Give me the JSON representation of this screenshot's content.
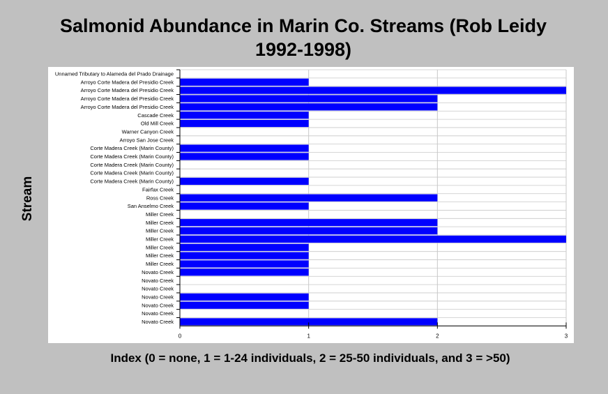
{
  "chart_data": {
    "type": "bar",
    "orientation": "horizontal",
    "title": "Salmonid Abundance in Marin Co. Streams (Rob Leidy 1992-1998)",
    "xlabel": "Index (0 = none, 1 = 1-24 individuals, 2 = 25-50 individuals, and 3 = >50)",
    "ylabel": "Stream",
    "xlim": [
      0,
      3
    ],
    "xticks": [
      "0",
      "1",
      "2",
      "3"
    ],
    "bar_color": "#0000ff",
    "grid": true,
    "legend": "none",
    "categories": [
      "Unnamed Tributary to Alameda del Prado Drainage",
      "Arroyo Corte Madera del Presidio Creek",
      "Arroyo Corte Madera del Presidio Creek",
      "Arroyo Corte Madera del Presidio Creek",
      "Arroyo Corte Madera del Presidio Creek",
      "Cascade Creek",
      "Old Mill Creek",
      "Warner Canyon Creek",
      "Arroyo San Jose Creek",
      "Corte Madera Creek (Marin County)",
      "Corte Madera Creek (Marin County)",
      "Corte Madera Creek (Marin County)",
      "Corte Madera Creek (Marin County)",
      "Corte Madera Creek (Marin County)",
      "Fairfax Creek",
      "Ross Creek",
      "San Anselmo Creek",
      "Miller Creek",
      "Miller Creek",
      "Miller Creek",
      "Miller Creek",
      "Miller Creek",
      "Miller Creek",
      "Miller Creek",
      "Novato Creek",
      "Novato Creek",
      "Novato Creek",
      "Novato Creek",
      "Novato Creek",
      "Novato Creek",
      "Novato Creek"
    ],
    "values": [
      0,
      1,
      3,
      2,
      2,
      1,
      1,
      0,
      0,
      1,
      1,
      0,
      0,
      1,
      0,
      2,
      1,
      0,
      2,
      2,
      3,
      1,
      1,
      1,
      1,
      0,
      0,
      1,
      1,
      0,
      2
    ]
  }
}
